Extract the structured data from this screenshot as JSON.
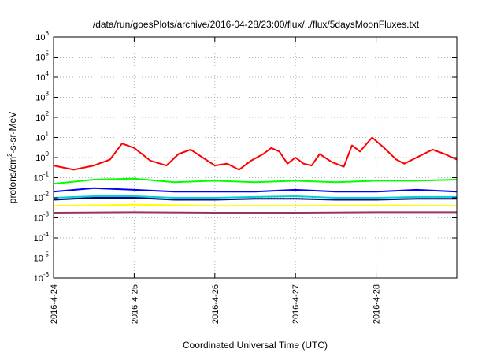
{
  "chart_data": {
    "type": "line",
    "title": "/data/run/goesPlots/archive/2016-04-28/23:00/flux/../flux/5daysMoonFluxes.txt",
    "xlabel": "Coordinated Universal Time (UTC)",
    "ylabel": {
      "pre": "protons/cm",
      "sup": "2",
      "post": "-s-sr-MeV"
    },
    "y_scale": "log",
    "ylim_exponents": [
      -6,
      6
    ],
    "y_tick_labels": [
      {
        "base": "10",
        "exp": "-6"
      },
      {
        "base": "10",
        "exp": "-5"
      },
      {
        "base": "10",
        "exp": "-4"
      },
      {
        "base": "10",
        "exp": "-3"
      },
      {
        "base": "10",
        "exp": "-2"
      },
      {
        "base": "10",
        "exp": "-1"
      },
      {
        "base": "10",
        "exp": "0"
      },
      {
        "base": "10",
        "exp": "1"
      },
      {
        "base": "10",
        "exp": "2"
      },
      {
        "base": "10",
        "exp": "3"
      },
      {
        "base": "10",
        "exp": "4"
      },
      {
        "base": "10",
        "exp": "5"
      },
      {
        "base": "10",
        "exp": "6"
      }
    ],
    "x_tick_labels": [
      "2016-4-24",
      "2016-4-25",
      "2016-4-26",
      "2016-4-27",
      "2016-4-28"
    ],
    "xlim_days": [
      0,
      5
    ],
    "grid": true,
    "legend": "none",
    "series": [
      {
        "color": "#ff0000",
        "x_days": [
          0.0,
          0.25,
          0.5,
          0.7,
          0.85,
          1.0,
          1.2,
          1.4,
          1.55,
          1.7,
          1.85,
          2.0,
          2.15,
          2.3,
          2.45,
          2.6,
          2.7,
          2.8,
          2.9,
          3.0,
          3.1,
          3.2,
          3.3,
          3.45,
          3.6,
          3.7,
          3.8,
          3.95,
          4.1,
          4.25,
          4.35,
          4.5,
          4.7,
          4.85,
          5.0
        ],
        "values": [
          0.4,
          0.25,
          0.4,
          0.8,
          5,
          3,
          0.7,
          0.4,
          1.5,
          2.5,
          1,
          0.4,
          0.5,
          0.25,
          0.7,
          1.5,
          3,
          2,
          0.5,
          1,
          0.5,
          0.4,
          1.5,
          0.6,
          0.35,
          4,
          2,
          10,
          3,
          0.8,
          0.5,
          1,
          2.5,
          1.5,
          0.8
        ]
      },
      {
        "color": "#00ff00",
        "x_days": [
          0.0,
          0.5,
          1.0,
          1.5,
          2.0,
          2.5,
          3.0,
          3.5,
          4.0,
          4.5,
          5.0
        ],
        "values": [
          0.05,
          0.08,
          0.09,
          0.06,
          0.07,
          0.06,
          0.07,
          0.06,
          0.07,
          0.07,
          0.08
        ]
      },
      {
        "color": "#0000ff",
        "x_days": [
          0.0,
          0.5,
          1.0,
          1.5,
          2.0,
          2.5,
          3.0,
          3.5,
          4.0,
          4.5,
          5.0
        ],
        "values": [
          0.02,
          0.03,
          0.025,
          0.02,
          0.02,
          0.02,
          0.025,
          0.02,
          0.02,
          0.025,
          0.02
        ]
      },
      {
        "color": "#00d0d0",
        "x_days": [
          0.0,
          0.5,
          1.0,
          1.5,
          2.0,
          2.5,
          3.0,
          3.5,
          4.0,
          4.5,
          5.0
        ],
        "values": [
          0.01,
          0.012,
          0.012,
          0.01,
          0.01,
          0.011,
          0.012,
          0.01,
          0.01,
          0.011,
          0.011
        ]
      },
      {
        "color": "#000080",
        "x_days": [
          0.0,
          0.5,
          1.0,
          1.5,
          2.0,
          2.5,
          3.0,
          3.5,
          4.0,
          4.5,
          5.0
        ],
        "values": [
          0.008,
          0.01,
          0.01,
          0.008,
          0.008,
          0.009,
          0.009,
          0.008,
          0.008,
          0.009,
          0.009
        ]
      },
      {
        "color": "#ffff00",
        "x_days": [
          0.0,
          1.0,
          2.0,
          3.0,
          4.0,
          5.0
        ],
        "values": [
          0.004,
          0.0045,
          0.004,
          0.004,
          0.0042,
          0.004
        ]
      },
      {
        "color": "#993366",
        "x_days": [
          0.0,
          1.0,
          2.0,
          3.0,
          4.0,
          5.0
        ],
        "values": [
          0.0018,
          0.0019,
          0.0018,
          0.0018,
          0.0019,
          0.0019
        ]
      }
    ]
  }
}
